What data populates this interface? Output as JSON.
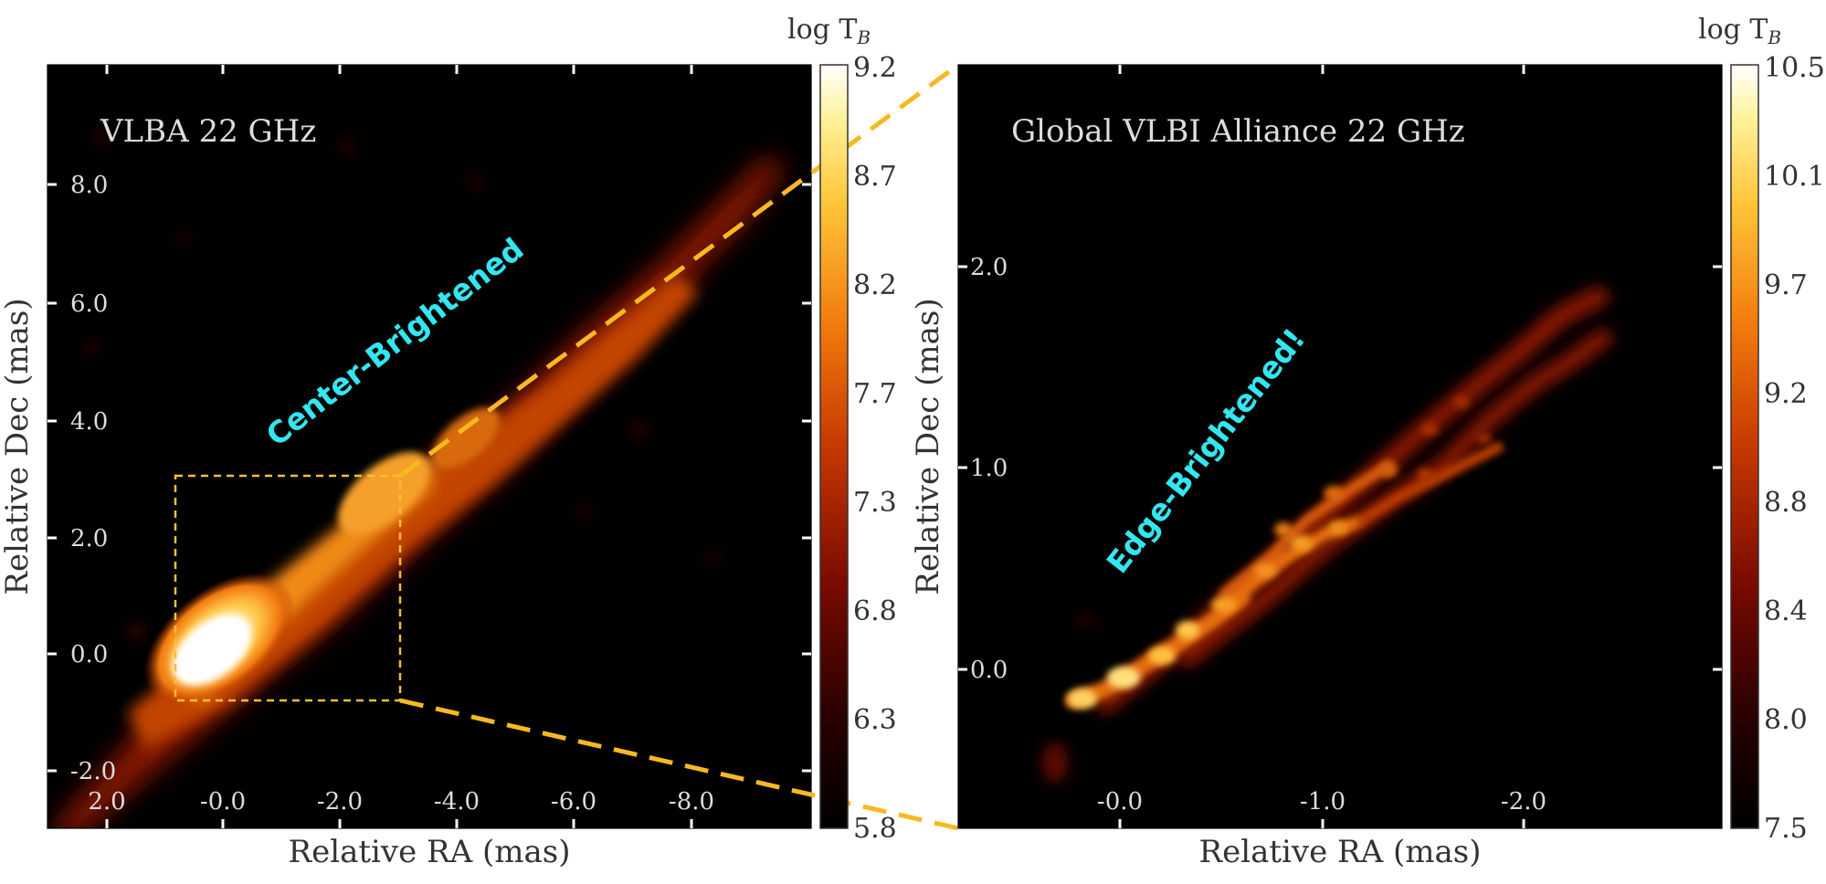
{
  "chart_data": [
    {
      "type": "heatmap",
      "title": "VLBA 22 GHz",
      "xlabel": "Relative RA (mas)",
      "ylabel": "Relative Dec (mas)",
      "x_ticks": [
        "2.0",
        "-0.0",
        "-2.0",
        "-4.0",
        "-6.0",
        "-8.0"
      ],
      "y_ticks": [
        "-2.0",
        "0.0",
        "2.0",
        "4.0",
        "6.0",
        "8.0"
      ],
      "xlim": [
        3.0,
        -10.0
      ],
      "ylim": [
        -3.0,
        10.0
      ],
      "colorbar": {
        "label": "log T",
        "label_sub": "B",
        "ticks": [
          "5.8",
          "6.3",
          "6.8",
          "7.3",
          "7.7",
          "8.2",
          "8.7",
          "9.2"
        ],
        "range": [
          5.8,
          9.2
        ]
      },
      "annotation": "Center-Brightened",
      "zoom_box": {
        "x": [
          0.8,
          -3.0
        ],
        "y": [
          -0.8,
          3.0
        ]
      }
    },
    {
      "type": "heatmap",
      "title": "Global VLBI Alliance 22 GHz",
      "xlabel": "Relative RA (mas)",
      "ylabel": "Relative Dec (mas)",
      "x_ticks": [
        "-0.0",
        "-1.0",
        "-2.0"
      ],
      "y_ticks": [
        "0.0",
        "1.0",
        "2.0"
      ],
      "xlim": [
        0.8,
        -3.0
      ],
      "ylim": [
        -0.8,
        3.0
      ],
      "colorbar": {
        "label": "log T",
        "label_sub": "B",
        "ticks": [
          "7.5",
          "8.0",
          "8.4",
          "8.8",
          "9.2",
          "9.7",
          "10.1",
          "10.5"
        ],
        "range": [
          7.5,
          10.5
        ]
      },
      "annotation": "Edge-Brightened!"
    }
  ],
  "colors": {
    "zoom_box": "#f5c030",
    "zoom_lines": "#f7b920",
    "annotation": "#33e6f0",
    "background": "#000000",
    "axis_text_dark": "#333333",
    "axis_text_light": "#dddddd"
  }
}
